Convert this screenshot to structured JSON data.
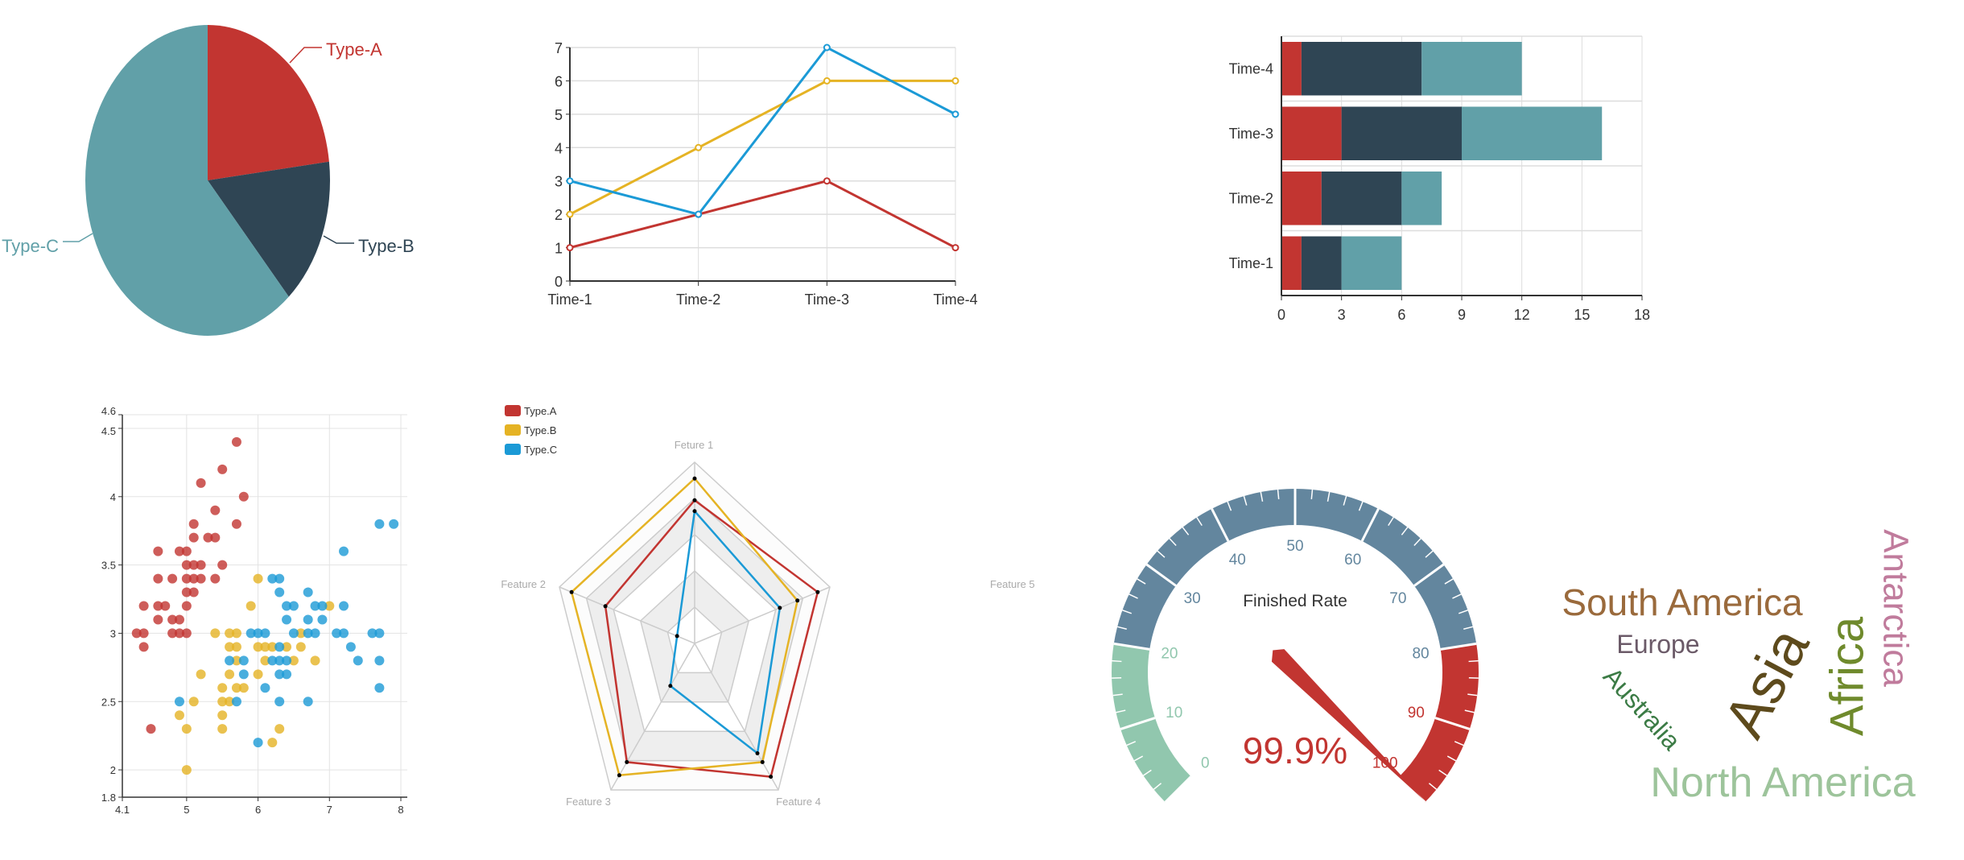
{
  "colors": {
    "red": "#c23531",
    "dark": "#2f4554",
    "teal": "#61a0a8",
    "yellow": "#e5b324",
    "blue": "#1b9ad6",
    "gauge_green": "#91c7ae",
    "gauge_blue": "#63869e",
    "gauge_red": "#c23531"
  },
  "chart_data": [
    {
      "type": "pie",
      "categories": [
        "Type-A",
        "Type-B",
        "Type-C"
      ],
      "values": [
        3,
        2,
        8
      ],
      "colors": [
        "#c23531",
        "#2f4554",
        "#61a0a8"
      ]
    },
    {
      "type": "line",
      "categories": [
        "Time-1",
        "Time-2",
        "Time-3",
        "Time-4"
      ],
      "series": [
        {
          "values": [
            1,
            2,
            3,
            1
          ],
          "color": "#c23531"
        },
        {
          "values": [
            2,
            4,
            6,
            6
          ],
          "color": "#e5b324"
        },
        {
          "values": [
            3,
            2,
            7,
            5
          ],
          "color": "#1b9ad6"
        }
      ],
      "ylim": [
        0,
        7
      ],
      "yticks": [
        0,
        1,
        2,
        3,
        4,
        5,
        6,
        7
      ],
      "grid": true
    },
    {
      "type": "bar",
      "orientation": "horizontal",
      "stacked": true,
      "categories": [
        "Time-1",
        "Time-2",
        "Time-3",
        "Time-4"
      ],
      "series": [
        {
          "values": [
            1,
            2,
            3,
            1
          ],
          "color": "#c23531"
        },
        {
          "values": [
            2,
            4,
            6,
            6
          ],
          "color": "#2f4554"
        },
        {
          "values": [
            3,
            2,
            7,
            5
          ],
          "color": "#61a0a8"
        }
      ],
      "xlim": [
        0,
        18
      ],
      "xticks": [
        0,
        3,
        6,
        9,
        12,
        15,
        18
      ],
      "grid": true
    },
    {
      "type": "scatter",
      "xlim": [
        4.1,
        8
      ],
      "ylim": [
        1.8,
        4.6
      ],
      "xticks": [
        4.1,
        5,
        6,
        7,
        8
      ],
      "yticks": [
        1.8,
        2,
        2.5,
        3,
        3.5,
        4,
        4.5,
        4.6
      ],
      "grid": true,
      "series": [
        {
          "color": "#c23531",
          "points": [
            [
              5.7,
              4.4
            ],
            [
              5.5,
              4.2
            ],
            [
              5.2,
              4.1
            ],
            [
              5.8,
              4.0
            ],
            [
              5.4,
              3.9
            ],
            [
              5.7,
              3.8
            ],
            [
              5.1,
              3.8
            ],
            [
              5.1,
              3.7
            ],
            [
              5.3,
              3.7
            ],
            [
              5.4,
              3.7
            ],
            [
              4.6,
              3.6
            ],
            [
              4.9,
              3.6
            ],
            [
              5.0,
              3.6
            ],
            [
              5.0,
              3.5
            ],
            [
              5.1,
              3.5
            ],
            [
              5.2,
              3.5
            ],
            [
              5.5,
              3.5
            ],
            [
              4.6,
              3.4
            ],
            [
              4.8,
              3.4
            ],
            [
              5.0,
              3.4
            ],
            [
              5.1,
              3.4
            ],
            [
              5.2,
              3.4
            ],
            [
              5.4,
              3.4
            ],
            [
              5.0,
              3.3
            ],
            [
              5.1,
              3.3
            ],
            [
              4.4,
              3.2
            ],
            [
              4.6,
              3.2
            ],
            [
              4.7,
              3.2
            ],
            [
              5.0,
              3.2
            ],
            [
              4.6,
              3.1
            ],
            [
              4.8,
              3.1
            ],
            [
              4.9,
              3.1
            ],
            [
              4.3,
              3.0
            ],
            [
              4.4,
              3.0
            ],
            [
              4.8,
              3.0
            ],
            [
              4.9,
              3.0
            ],
            [
              5.0,
              3.0
            ],
            [
              4.4,
              2.9
            ],
            [
              4.5,
              2.3
            ]
          ]
        },
        {
          "color": "#e5b324",
          "points": [
            [
              6.0,
              3.4
            ],
            [
              5.9,
              3.2
            ],
            [
              7.0,
              3.2
            ],
            [
              5.4,
              3.0
            ],
            [
              5.6,
              3.0
            ],
            [
              5.7,
              3.0
            ],
            [
              6.6,
              3.0
            ],
            [
              5.6,
              2.9
            ],
            [
              5.7,
              2.9
            ],
            [
              6.0,
              2.9
            ],
            [
              6.1,
              2.9
            ],
            [
              6.2,
              2.9
            ],
            [
              6.4,
              2.9
            ],
            [
              6.6,
              2.9
            ],
            [
              5.7,
              2.8
            ],
            [
              6.1,
              2.8
            ],
            [
              6.5,
              2.8
            ],
            [
              6.8,
              2.8
            ],
            [
              5.2,
              2.7
            ],
            [
              5.6,
              2.7
            ],
            [
              6.0,
              2.7
            ],
            [
              5.5,
              2.6
            ],
            [
              5.7,
              2.6
            ],
            [
              5.8,
              2.6
            ],
            [
              5.1,
              2.5
            ],
            [
              5.5,
              2.5
            ],
            [
              5.6,
              2.5
            ],
            [
              4.9,
              2.4
            ],
            [
              5.5,
              2.4
            ],
            [
              5.0,
              2.3
            ],
            [
              5.5,
              2.3
            ],
            [
              6.3,
              2.3
            ],
            [
              6.2,
              2.2
            ],
            [
              5.0,
              2.0
            ]
          ]
        },
        {
          "color": "#1b9ad6",
          "points": [
            [
              7.7,
              3.8
            ],
            [
              7.9,
              3.8
            ],
            [
              7.2,
              3.6
            ],
            [
              6.2,
              3.4
            ],
            [
              6.3,
              3.4
            ],
            [
              6.3,
              3.3
            ],
            [
              6.7,
              3.3
            ],
            [
              6.4,
              3.2
            ],
            [
              6.5,
              3.2
            ],
            [
              6.8,
              3.2
            ],
            [
              6.9,
              3.2
            ],
            [
              7.2,
              3.2
            ],
            [
              6.4,
              3.1
            ],
            [
              6.7,
              3.1
            ],
            [
              6.9,
              3.1
            ],
            [
              5.9,
              3.0
            ],
            [
              6.0,
              3.0
            ],
            [
              6.1,
              3.0
            ],
            [
              6.5,
              3.0
            ],
            [
              6.7,
              3.0
            ],
            [
              6.8,
              3.0
            ],
            [
              7.1,
              3.0
            ],
            [
              7.2,
              3.0
            ],
            [
              7.6,
              3.0
            ],
            [
              7.7,
              3.0
            ],
            [
              6.3,
              2.9
            ],
            [
              7.3,
              2.9
            ],
            [
              5.6,
              2.8
            ],
            [
              5.8,
              2.8
            ],
            [
              6.2,
              2.8
            ],
            [
              6.3,
              2.8
            ],
            [
              6.4,
              2.8
            ],
            [
              7.4,
              2.8
            ],
            [
              7.7,
              2.8
            ],
            [
              5.8,
              2.7
            ],
            [
              6.3,
              2.7
            ],
            [
              6.4,
              2.7
            ],
            [
              6.1,
              2.6
            ],
            [
              7.7,
              2.6
            ],
            [
              4.9,
              2.5
            ],
            [
              5.7,
              2.5
            ],
            [
              6.3,
              2.5
            ],
            [
              6.7,
              2.5
            ],
            [
              6.0,
              2.2
            ]
          ]
        }
      ]
    },
    {
      "type": "radar",
      "indicators": [
        "Feture 1",
        "Feature 2",
        "Feature 3",
        "Feature 4",
        "Feature 5"
      ],
      "max": 1,
      "legend": "top-left",
      "series": [
        {
          "name": "Type.A",
          "color": "#c23531",
          "values": [
            0.79,
            0.66,
            0.81,
            0.91,
            0.91
          ]
        },
        {
          "name": "Type.B",
          "color": "#e5b324",
          "values": [
            0.91,
            0.91,
            0.9,
            0.81,
            0.76
          ]
        },
        {
          "name": "Type.C",
          "color": "#1b9ad6",
          "values": [
            0.73,
            0.13,
            0.29,
            0.75,
            0.63
          ]
        }
      ]
    },
    {
      "type": "gauge",
      "title": "Finished Rate",
      "value": 99.9,
      "value_label": "99.9%",
      "min": 0,
      "max": 100,
      "tick_labels": [
        "0",
        "10",
        "20",
        "30",
        "40",
        "50",
        "60",
        "70",
        "80",
        "90",
        "100"
      ],
      "bands": [
        {
          "to": 0.2,
          "color": "#91c7ae"
        },
        {
          "to": 0.8,
          "color": "#63869e"
        },
        {
          "to": 1,
          "color": "#c23531"
        }
      ]
    },
    {
      "type": "wordcloud",
      "words": [
        {
          "text": "South America",
          "color": "#9a6a3c"
        },
        {
          "text": "Europe",
          "color": "#6b5a68"
        },
        {
          "text": "Asia",
          "color": "#5d4a1c"
        },
        {
          "text": "Africa",
          "color": "#6f8a2c"
        },
        {
          "text": "Antarctica",
          "color": "#c07b9c"
        },
        {
          "text": "Australia",
          "color": "#3b7b45"
        },
        {
          "text": "North America",
          "color": "#9dc49b"
        }
      ]
    }
  ]
}
